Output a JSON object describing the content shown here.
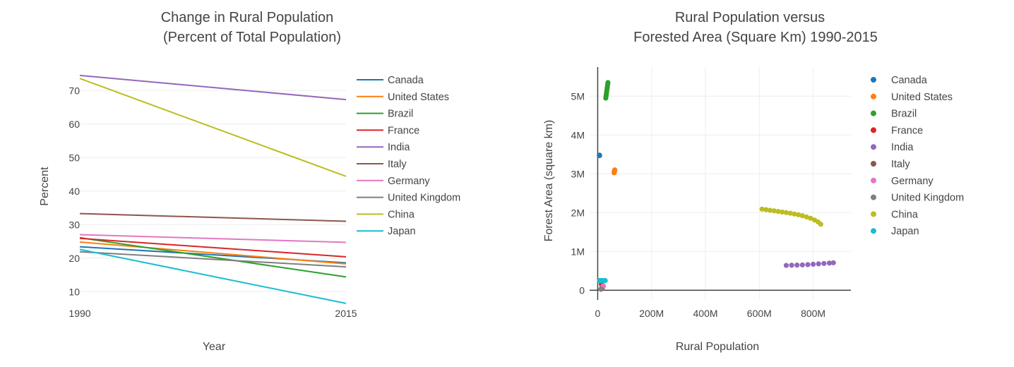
{
  "colors": {
    "Canada": "#1f77b4",
    "United States": "#ff7f0e",
    "Brazil": "#2ca02c",
    "France": "#d62728",
    "India": "#9467bd",
    "Italy": "#8c564b",
    "Germany": "#e377c2",
    "United Kingdom": "#7f7f7f",
    "China": "#bcbd22",
    "Japan": "#17becf"
  },
  "chart_data": [
    {
      "type": "line",
      "title": [
        "Change in Rural Population",
        "(Percent of Total Population)"
      ],
      "xlabel": "Year",
      "ylabel": "Percent",
      "x": [
        1990,
        2015
      ],
      "xticks": [
        "1990",
        "2015"
      ],
      "yticks": [
        10,
        20,
        30,
        40,
        50,
        60,
        70
      ],
      "ylim": [
        5,
        77
      ],
      "legend_position": "right",
      "series": [
        {
          "name": "Canada",
          "values": [
            23.4,
            18.6
          ]
        },
        {
          "name": "United States",
          "values": [
            24.8,
            18.3
          ]
        },
        {
          "name": "Brazil",
          "values": [
            26.1,
            14.4
          ]
        },
        {
          "name": "France",
          "values": [
            25.9,
            20.4
          ]
        },
        {
          "name": "India",
          "values": [
            74.5,
            67.3
          ]
        },
        {
          "name": "Italy",
          "values": [
            33.3,
            31.0
          ]
        },
        {
          "name": "Germany",
          "values": [
            27.0,
            24.7
          ]
        },
        {
          "name": "United Kingdom",
          "values": [
            21.9,
            17.4
          ]
        },
        {
          "name": "China",
          "values": [
            73.6,
            44.4
          ]
        },
        {
          "name": "Japan",
          "values": [
            22.6,
            6.5
          ]
        }
      ]
    },
    {
      "type": "scatter",
      "title": [
        "Rural Population versus",
        "Forested Area (Square Km) 1990-2015"
      ],
      "xlabel": "Rural Population",
      "ylabel": "Forest Area (square km)",
      "xlim": [
        -30000000,
        940000000
      ],
      "ylim": [
        -250000,
        5750000
      ],
      "xticks": [
        {
          "v": 0,
          "label": "0"
        },
        {
          "v": 200000000,
          "label": "200M"
        },
        {
          "v": 400000000,
          "label": "400M"
        },
        {
          "v": 600000000,
          "label": "600M"
        },
        {
          "v": 800000000,
          "label": "800M"
        }
      ],
      "yticks": [
        {
          "v": 0,
          "label": "0"
        },
        {
          "v": 1000000,
          "label": "1M"
        },
        {
          "v": 2000000,
          "label": "2M"
        },
        {
          "v": 3000000,
          "label": "3M"
        },
        {
          "v": 4000000,
          "label": "4M"
        },
        {
          "v": 5000000,
          "label": "5M"
        }
      ],
      "legend_position": "right",
      "series": [
        {
          "name": "Canada",
          "points": [
            [
              6400000,
              3480000
            ],
            [
              6500000,
              3478000
            ],
            [
              6600000,
              3476000
            ],
            [
              6700000,
              3474000
            ],
            [
              6800000,
              3472000
            ],
            [
              6900000,
              3470000
            ]
          ]
        },
        {
          "name": "United States",
          "points": [
            [
              61000000,
              3025000
            ],
            [
              61500000,
              3045000
            ],
            [
              62000000,
              3065000
            ],
            [
              62500000,
              3080000
            ],
            [
              63000000,
              3095000
            ],
            [
              63500000,
              3100000
            ]
          ]
        },
        {
          "name": "Brazil",
          "points": [
            [
              38000000,
              5350000
            ],
            [
              37000000,
              5300000
            ],
            [
              36000000,
              5250000
            ],
            [
              35000000,
              5200000
            ],
            [
              34000000,
              5150000
            ],
            [
              33000000,
              5100000
            ],
            [
              32000000,
              5050000
            ],
            [
              31000000,
              5000000
            ],
            [
              30000000,
              4950000
            ]
          ]
        },
        {
          "name": "France",
          "points": [
            [
              14500000,
              145000
            ],
            [
              14400000,
              150000
            ],
            [
              14300000,
              155000
            ],
            [
              14200000,
              160000
            ],
            [
              14100000,
              165000
            ]
          ]
        },
        {
          "name": "India",
          "points": [
            [
              700000000,
              640000
            ],
            [
              720000000,
              645000
            ],
            [
              740000000,
              648000
            ],
            [
              760000000,
              652000
            ],
            [
              780000000,
              660000
            ],
            [
              800000000,
              670000
            ],
            [
              820000000,
              680000
            ],
            [
              840000000,
              690000
            ],
            [
              860000000,
              700000
            ],
            [
              875000000,
              708000
            ]
          ]
        },
        {
          "name": "Italy",
          "points": [
            [
              18800000,
              76000
            ],
            [
              18700000,
              80000
            ],
            [
              18600000,
              85000
            ],
            [
              18500000,
              88000
            ]
          ]
        },
        {
          "name": "Germany",
          "points": [
            [
              21500000,
              107000
            ],
            [
              21000000,
              108000
            ],
            [
              20500000,
              109000
            ],
            [
              20000000,
              110000
            ]
          ]
        },
        {
          "name": "United Kingdom",
          "points": [
            [
              12600000,
              26000
            ],
            [
              12300000,
              28000
            ],
            [
              12000000,
              30000
            ],
            [
              11700000,
              31000
            ]
          ]
        },
        {
          "name": "China",
          "points": [
            [
              610000000,
              2090000
            ],
            [
              625000000,
              2075000
            ],
            [
              640000000,
              2060000
            ],
            [
              655000000,
              2045000
            ],
            [
              670000000,
              2030000
            ],
            [
              685000000,
              2015000
            ],
            [
              700000000,
              2000000
            ],
            [
              715000000,
              1985000
            ],
            [
              730000000,
              1965000
            ],
            [
              745000000,
              1945000
            ],
            [
              760000000,
              1920000
            ],
            [
              775000000,
              1890000
            ],
            [
              790000000,
              1855000
            ],
            [
              805000000,
              1810000
            ],
            [
              818000000,
              1760000
            ],
            [
              828000000,
              1700000
            ]
          ]
        },
        {
          "name": "Japan",
          "points": [
            [
              28000000,
              250000
            ],
            [
              26000000,
              250000
            ],
            [
              24000000,
              249000
            ],
            [
              22000000,
              249000
            ],
            [
              20000000,
              249000
            ],
            [
              18000000,
              248000
            ],
            [
              16000000,
              248000
            ],
            [
              14000000,
              248000
            ],
            [
              12000000,
              248000
            ],
            [
              10000000,
              248000
            ],
            [
              8000000,
              248000
            ],
            [
              7000000,
              248000
            ]
          ]
        }
      ]
    }
  ]
}
